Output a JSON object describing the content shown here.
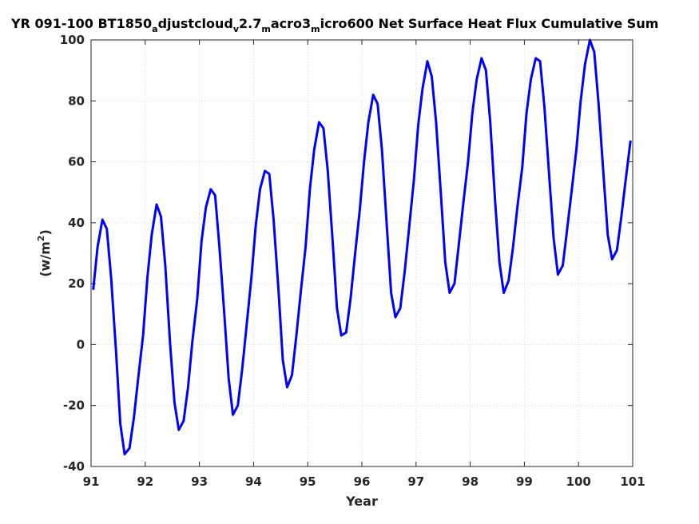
{
  "chart_data": {
    "type": "line",
    "title_parts": [
      {
        "t": "YR 091-100 BT1850",
        "s": false
      },
      {
        "t": "a",
        "s": true
      },
      {
        "t": "djustcloud",
        "s": false
      },
      {
        "t": "v",
        "s": true
      },
      {
        "t": "2.7",
        "s": false
      },
      {
        "t": "m",
        "s": true
      },
      {
        "t": "acro3",
        "s": false
      },
      {
        "t": "m",
        "s": true
      },
      {
        "t": "icro600 Net Surface Heat Flux  Cumulative Sum",
        "s": false
      }
    ],
    "xlabel": "Year",
    "ylabel_main": "(w/m",
    "ylabel_sup": "2",
    "ylabel_end": ")",
    "xlim": [
      91,
      101
    ],
    "ylim": [
      -40,
      100
    ],
    "xticks": [
      91,
      92,
      93,
      94,
      95,
      96,
      97,
      98,
      99,
      100,
      101
    ],
    "yticks": [
      -40,
      -20,
      0,
      20,
      40,
      60,
      80,
      100
    ],
    "grid": true,
    "series": [
      {
        "color": "#0000ff",
        "x": [
          91.04,
          91.12,
          91.21,
          91.29,
          91.37,
          91.46,
          91.54,
          91.62,
          91.71,
          91.79,
          91.87,
          91.96,
          92.04,
          92.12,
          92.21,
          92.29,
          92.37,
          92.46,
          92.54,
          92.62,
          92.71,
          92.79,
          92.87,
          92.96,
          93.04,
          93.12,
          93.21,
          93.29,
          93.37,
          93.46,
          93.54,
          93.62,
          93.71,
          93.79,
          93.87,
          93.96,
          94.04,
          94.12,
          94.21,
          94.29,
          94.37,
          94.46,
          94.54,
          94.62,
          94.71,
          94.79,
          94.87,
          94.96,
          95.04,
          95.12,
          95.21,
          95.29,
          95.37,
          95.46,
          95.54,
          95.62,
          95.71,
          95.79,
          95.87,
          95.96,
          96.04,
          96.12,
          96.21,
          96.29,
          96.37,
          96.46,
          96.54,
          96.62,
          96.71,
          96.79,
          96.87,
          96.96,
          97.04,
          97.12,
          97.21,
          97.29,
          97.37,
          97.46,
          97.54,
          97.62,
          97.71,
          97.79,
          97.87,
          97.96,
          98.04,
          98.12,
          98.21,
          98.29,
          98.37,
          98.46,
          98.54,
          98.62,
          98.71,
          98.79,
          98.87,
          98.96,
          99.04,
          99.12,
          99.21,
          99.29,
          99.37,
          99.46,
          99.54,
          99.62,
          99.71,
          99.79,
          99.87,
          99.96,
          100.04,
          100.12,
          100.21,
          100.29,
          100.37,
          100.46,
          100.54,
          100.62,
          100.71,
          100.79,
          100.87,
          100.96
        ],
        "y": [
          18,
          32,
          41,
          38,
          22,
          -2,
          -26,
          -36,
          -34,
          -24,
          -11,
          3,
          22,
          36,
          46,
          42,
          26,
          0,
          -19,
          -28,
          -25,
          -14,
          1,
          15,
          34,
          45,
          51,
          49,
          32,
          10,
          -11,
          -23,
          -20,
          -8,
          6,
          22,
          39,
          51,
          57,
          56,
          41,
          18,
          -5,
          -14,
          -10,
          3,
          17,
          32,
          51,
          64,
          73,
          71,
          57,
          34,
          12,
          3,
          4,
          15,
          29,
          44,
          60,
          73,
          82,
          79,
          64,
          39,
          17,
          9,
          12,
          24,
          38,
          54,
          72,
          84,
          93,
          88,
          73,
          49,
          27,
          17,
          20,
          33,
          46,
          60,
          76,
          87,
          94,
          90,
          73,
          47,
          27,
          17,
          21,
          32,
          45,
          58,
          76,
          87,
          94,
          93,
          78,
          55,
          35,
          23,
          26,
          38,
          50,
          64,
          80,
          92,
          100,
          96,
          79,
          56,
          36,
          28,
          31,
          42,
          54,
          67
        ]
      }
    ]
  }
}
